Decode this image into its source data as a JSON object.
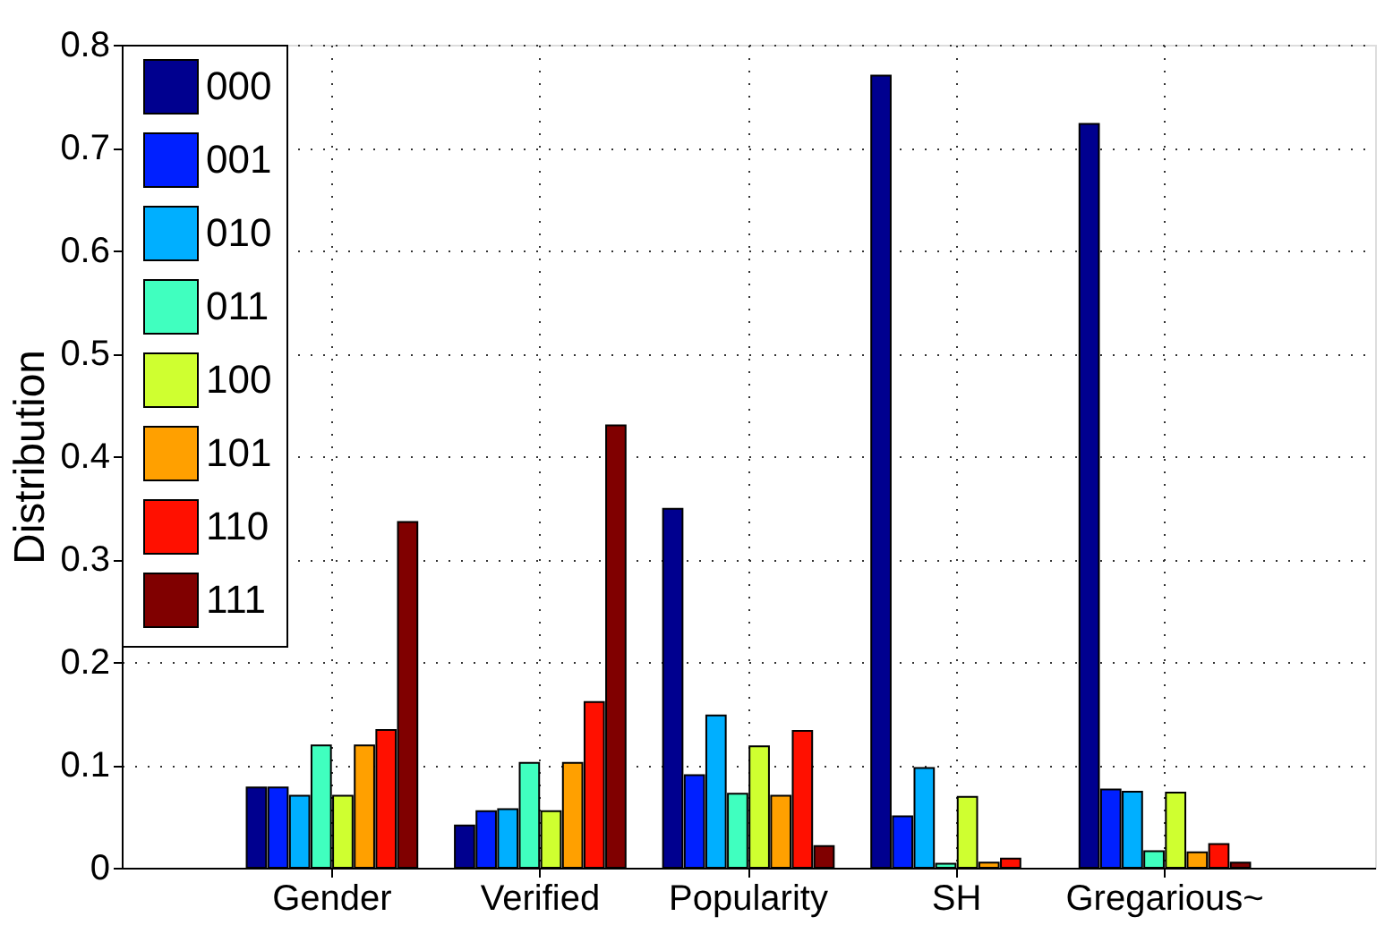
{
  "chart_data": {
    "type": "bar",
    "ylabel": "Distribution",
    "categories": [
      "Gender",
      "Verified",
      "Popularity",
      "SH",
      "Gregarious~"
    ],
    "series": [
      {
        "name": "000",
        "color": "#00008f",
        "values": [
          0.078,
          0.041,
          0.349,
          0.77,
          0.723
        ]
      },
      {
        "name": "001",
        "color": "#0020ff",
        "values": [
          0.078,
          0.055,
          0.09,
          0.05,
          0.076
        ]
      },
      {
        "name": "010",
        "color": "#00afff",
        "values": [
          0.07,
          0.057,
          0.148,
          0.097,
          0.074
        ]
      },
      {
        "name": "011",
        "color": "#40ffbf",
        "values": [
          0.119,
          0.102,
          0.072,
          0.004,
          0.016
        ]
      },
      {
        "name": "100",
        "color": "#cfff30",
        "values": [
          0.07,
          0.055,
          0.118,
          0.069,
          0.073
        ]
      },
      {
        "name": "101",
        "color": "#ffa000",
        "values": [
          0.119,
          0.102,
          0.07,
          0.005,
          0.015
        ]
      },
      {
        "name": "110",
        "color": "#ff1000",
        "values": [
          0.134,
          0.161,
          0.133,
          0.009,
          0.023
        ]
      },
      {
        "name": "111",
        "color": "#800000",
        "values": [
          0.336,
          0.43,
          0.021,
          0.0,
          0.005
        ]
      }
    ],
    "ylim": [
      0,
      0.8
    ],
    "yticks": [
      0,
      0.1,
      0.2,
      0.3,
      0.4,
      0.5,
      0.6,
      0.7,
      0.8
    ],
    "grid": true,
    "legend": "top left"
  }
}
